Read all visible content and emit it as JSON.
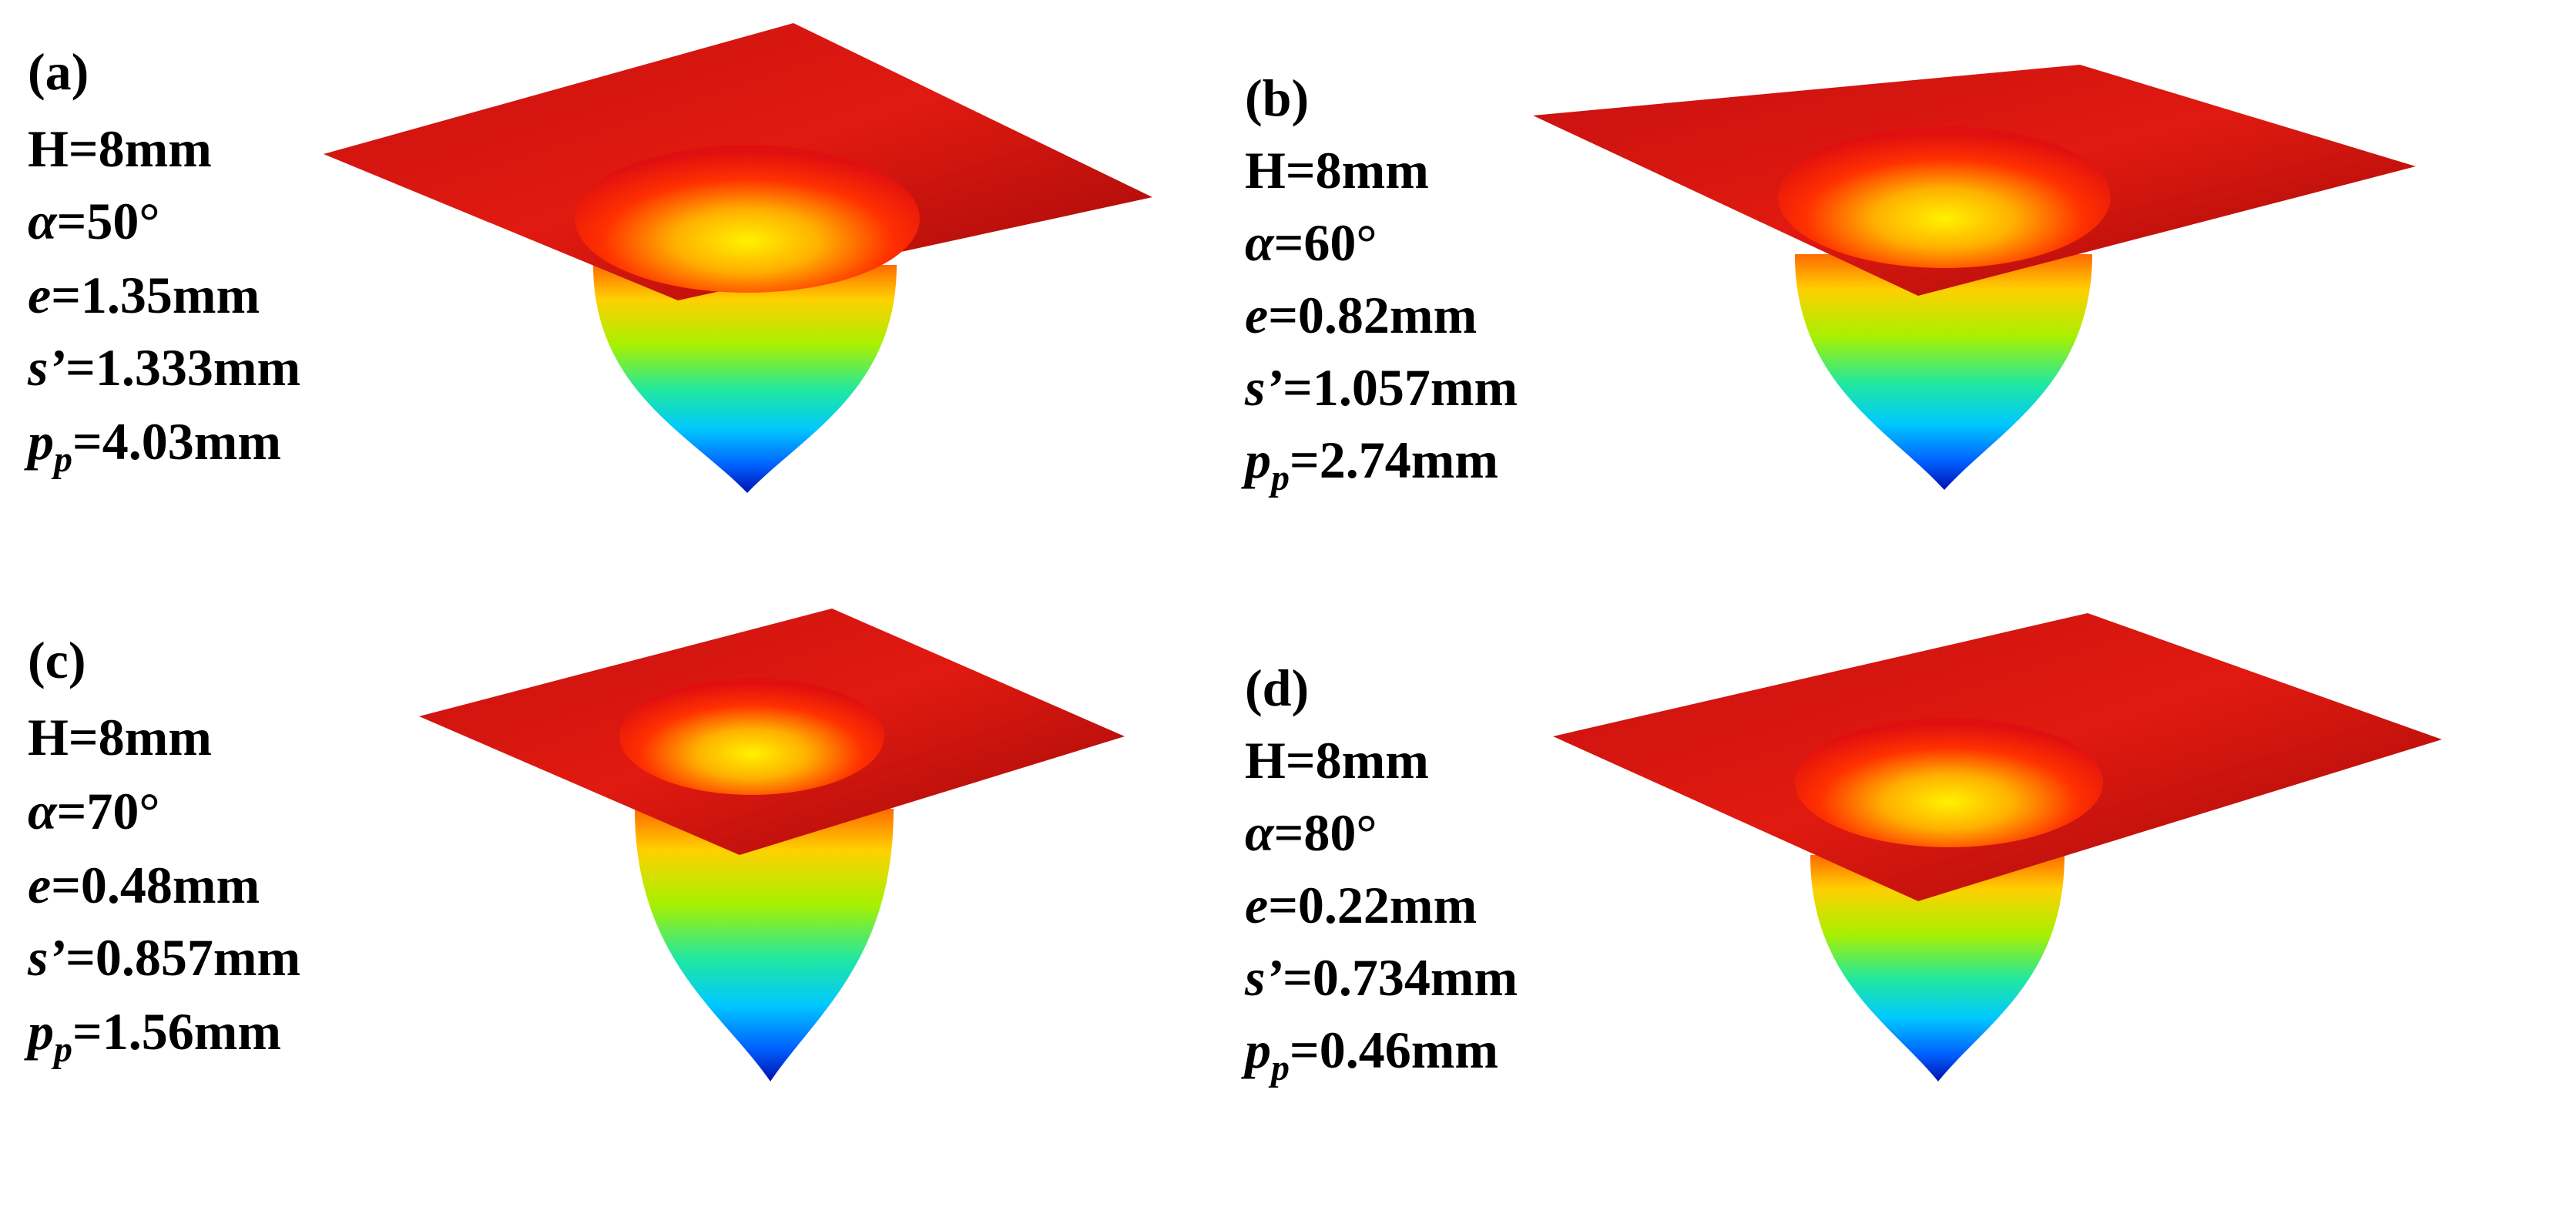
{
  "panels": [
    {
      "label": "(a)",
      "params": [
        {
          "symbol": "H",
          "value": "=8mm"
        },
        {
          "symbol": "α",
          "value": "=50°"
        },
        {
          "symbol": "e",
          "value": "=1.35mm"
        },
        {
          "symbol": "s’",
          "value": "=1.333mm"
        },
        {
          "symbol": "p",
          "subscript": "p",
          "value": "=4.03mm"
        }
      ]
    },
    {
      "label": "(b)",
      "params": [
        {
          "symbol": "H",
          "value": "=8mm"
        },
        {
          "symbol": "α",
          "value": "=60°"
        },
        {
          "symbol": "e",
          "value": "=0.82mm"
        },
        {
          "symbol": "s’",
          "value": "=1.057mm"
        },
        {
          "symbol": "p",
          "subscript": "p",
          "value": "=2.74mm"
        }
      ]
    },
    {
      "label": "(c)",
      "params": [
        {
          "symbol": "H",
          "value": "=8mm"
        },
        {
          "symbol": "α",
          "value": "=70°"
        },
        {
          "symbol": "e",
          "value": "=0.48mm"
        },
        {
          "symbol": "s’",
          "value": "=0.857mm"
        },
        {
          "symbol": "p",
          "subscript": "p",
          "value": "=1.56mm"
        }
      ]
    },
    {
      "label": "(d)",
      "params": [
        {
          "symbol": "H",
          "value": "=8mm"
        },
        {
          "symbol": "α",
          "value": "=80°"
        },
        {
          "symbol": "e",
          "value": "=0.22mm"
        },
        {
          "symbol": "s’",
          "value": "=0.734mm"
        },
        {
          "symbol": "p",
          "subscript": "p",
          "value": "=0.46mm"
        }
      ]
    }
  ]
}
